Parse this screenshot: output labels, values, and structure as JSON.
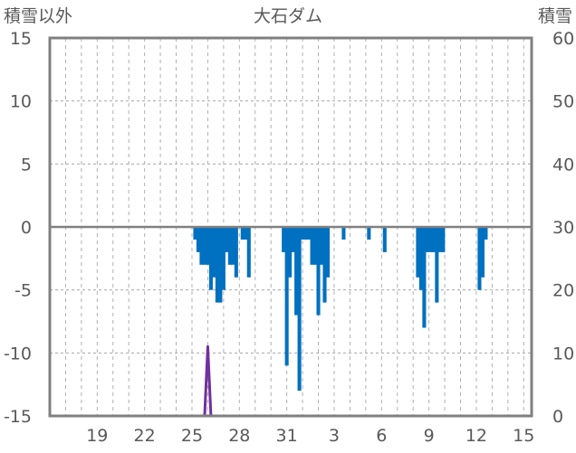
{
  "chart_data": {
    "type": "bar",
    "title": "大石ダム",
    "ylabel_left": "積雪以外",
    "ylabel_right": "積雪",
    "xticks": [
      "19",
      "22",
      "25",
      "28",
      "31",
      "3",
      "6",
      "9",
      "12",
      "15"
    ],
    "ylim_left": [
      -15,
      15
    ],
    "yticks_left": [
      15,
      10,
      5,
      0,
      -5,
      -10,
      -15
    ],
    "ylim_right": [
      0,
      60
    ],
    "yticks_right": [
      60,
      50,
      40,
      30,
      20,
      10,
      0
    ],
    "grid": true,
    "colors": {
      "bars": "#0070C0",
      "snow": "#7030A0",
      "axis": "#808080"
    },
    "series": [
      {
        "axis": "left",
        "kind": "bar",
        "points": [
          [
            25.2,
            -1
          ],
          [
            25.4,
            -2
          ],
          [
            25.6,
            -3
          ],
          [
            25.8,
            -3
          ],
          [
            26.0,
            -3
          ],
          [
            26.2,
            -5
          ],
          [
            26.4,
            -4
          ],
          [
            26.6,
            -6
          ],
          [
            26.8,
            -6
          ],
          [
            27.0,
            -5
          ],
          [
            27.2,
            -2
          ],
          [
            27.4,
            -3
          ],
          [
            27.6,
            -3
          ],
          [
            27.8,
            -4
          ],
          [
            28.2,
            -1
          ],
          [
            28.4,
            -1
          ],
          [
            28.6,
            -4
          ],
          [
            30.8,
            -2
          ],
          [
            31.0,
            -11
          ],
          [
            31.2,
            -4
          ],
          [
            31.4,
            -2
          ],
          [
            31.6,
            -7
          ],
          [
            31.8,
            -13
          ],
          [
            32.0,
            -1
          ],
          [
            32.2,
            -1
          ],
          [
            32.4,
            -1
          ],
          [
            32.6,
            -3
          ],
          [
            32.8,
            -3
          ],
          [
            33.0,
            -7
          ],
          [
            33.2,
            -3
          ],
          [
            33.4,
            -6
          ],
          [
            33.6,
            -4
          ],
          [
            34.6,
            -1
          ],
          [
            36.2,
            -1
          ],
          [
            37.2,
            -2
          ],
          [
            39.3,
            -4
          ],
          [
            39.5,
            -5
          ],
          [
            39.7,
            -8
          ],
          [
            39.9,
            -2
          ],
          [
            40.1,
            -2
          ],
          [
            40.3,
            -2
          ],
          [
            40.5,
            -6
          ],
          [
            40.7,
            -2
          ],
          [
            40.9,
            -2
          ],
          [
            43.2,
            -5
          ],
          [
            43.4,
            -4
          ],
          [
            43.6,
            -1
          ]
        ]
      },
      {
        "axis": "right",
        "kind": "line",
        "points": [
          [
            16.0,
            0
          ],
          [
            25.8,
            0
          ],
          [
            26.0,
            11
          ],
          [
            26.2,
            0
          ],
          [
            46.5,
            0
          ]
        ]
      }
    ]
  }
}
